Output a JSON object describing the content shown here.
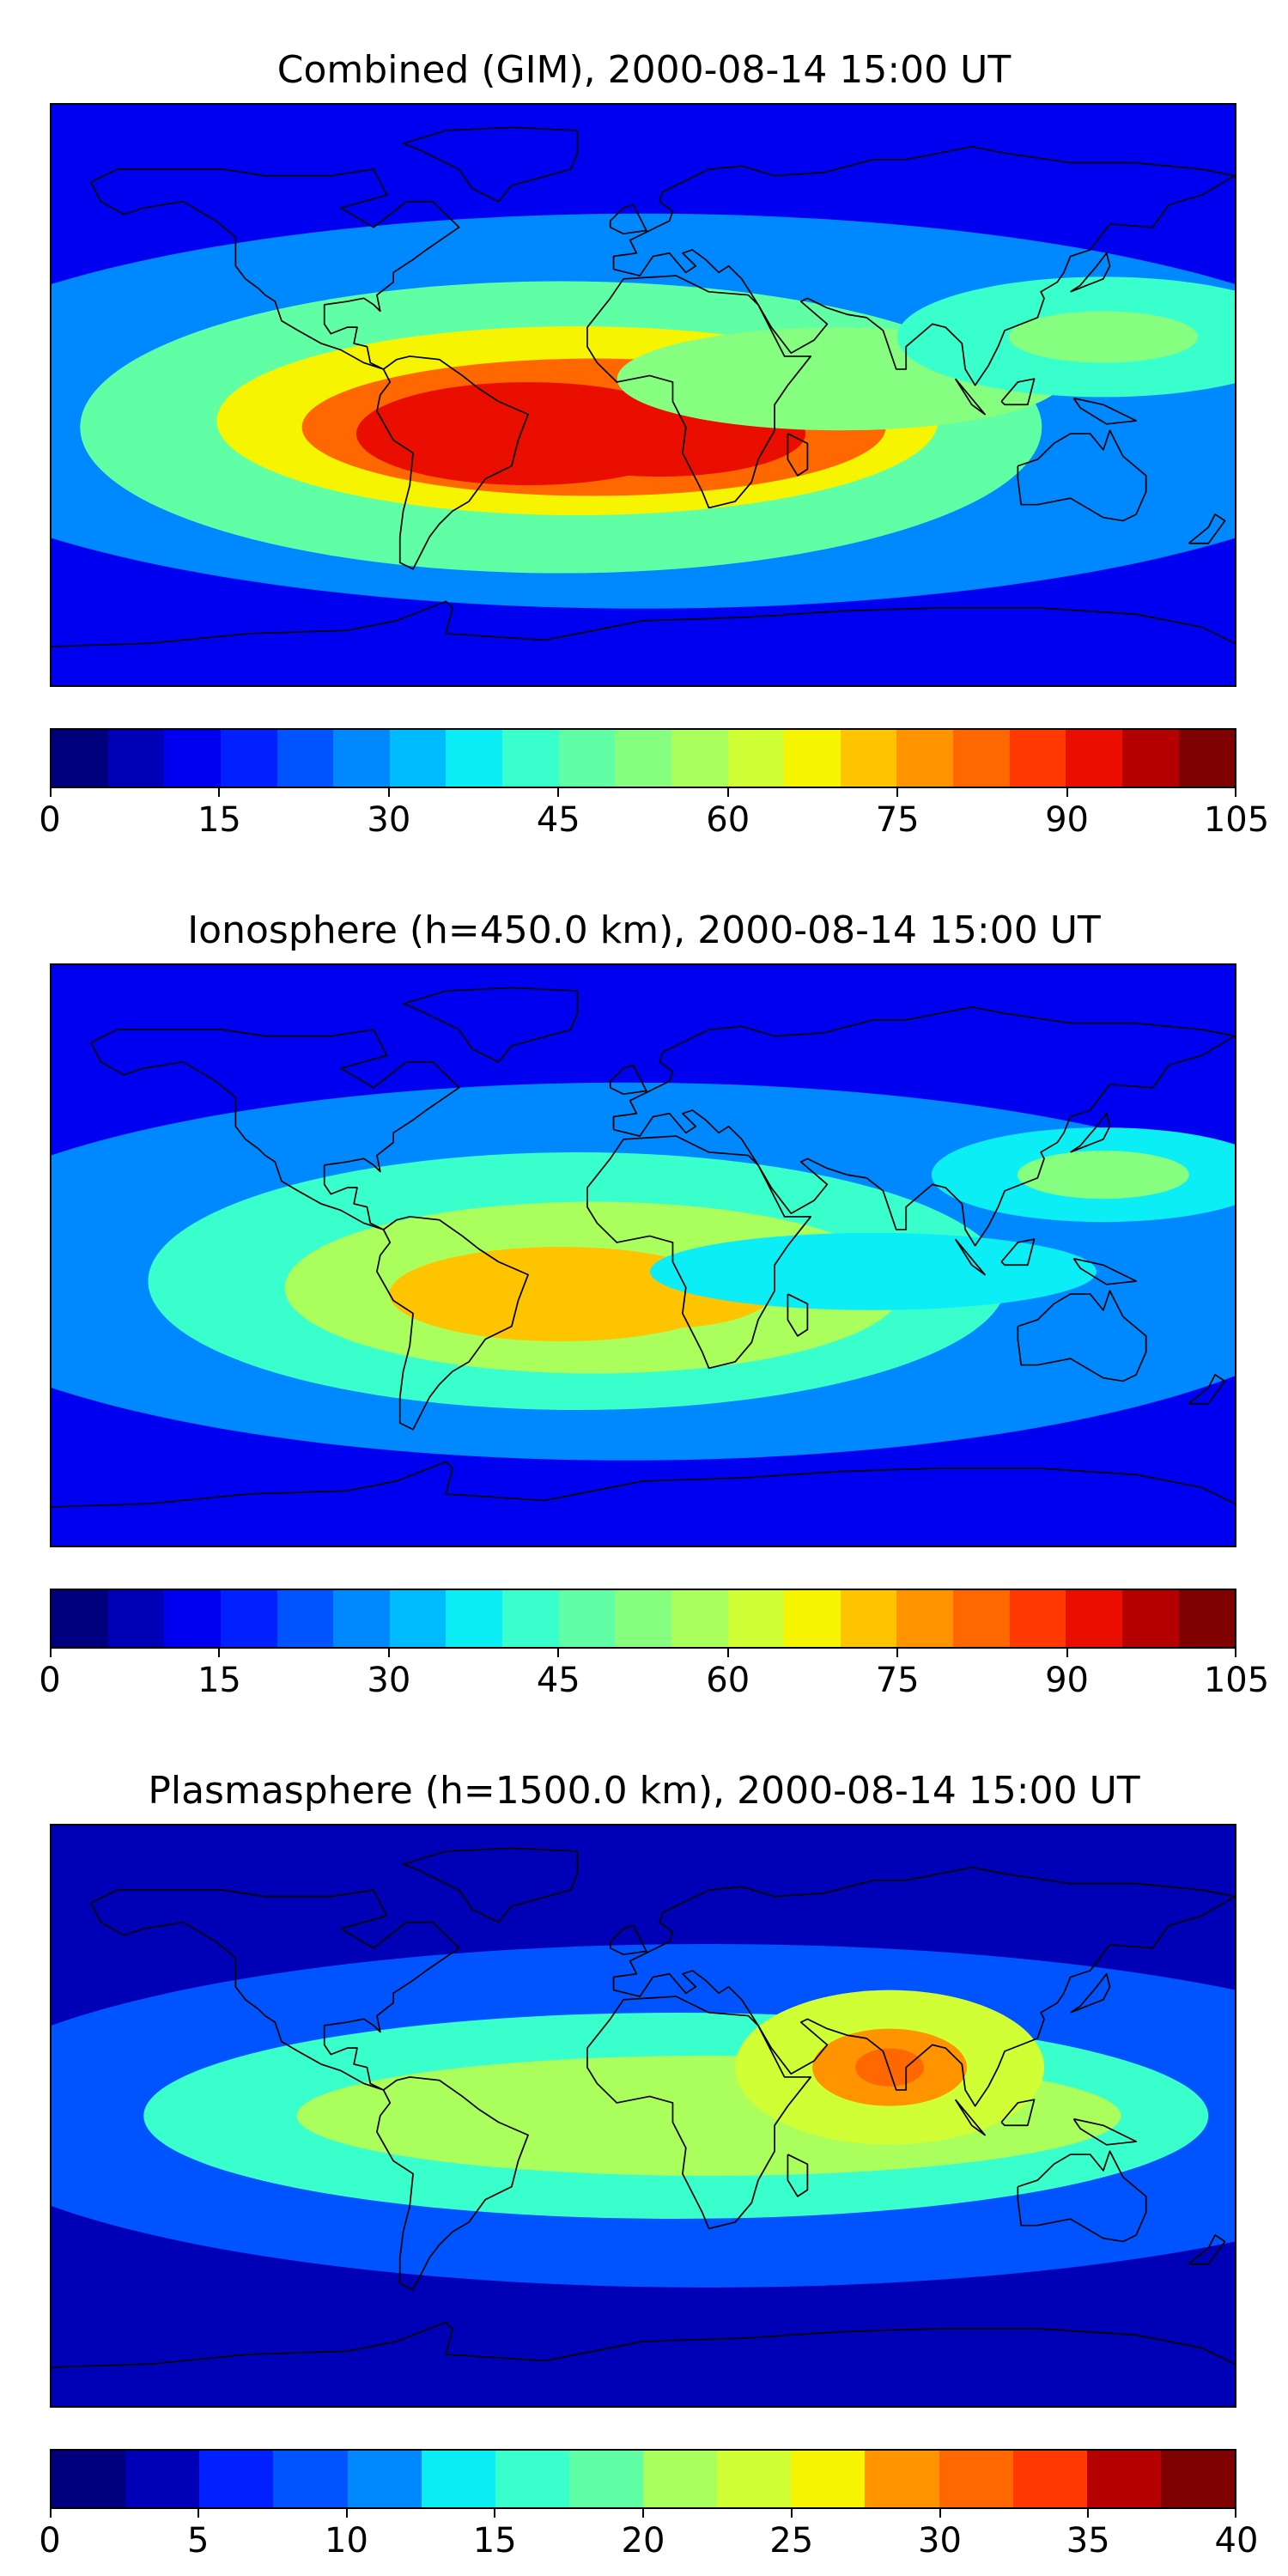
{
  "panels": [
    {
      "title": "Combined (GIM), 2000-08-14 15:00 UT",
      "colorbar": {
        "min": 0,
        "max": 105,
        "step": 5,
        "ticks": [
          0,
          15,
          30,
          45,
          60,
          75,
          90,
          105
        ]
      },
      "blobs": [
        {
          "lon": 0,
          "lat": -5,
          "rx": 900,
          "ry": 230,
          "level": 0.28
        },
        {
          "lon": -25,
          "lat": -10,
          "rx": 560,
          "ry": 170,
          "level": 0.45
        },
        {
          "lon": -20,
          "lat": -8,
          "rx": 420,
          "ry": 110,
          "level": 0.62
        },
        {
          "lon": -15,
          "lat": -10,
          "rx": 340,
          "ry": 80,
          "level": 0.78
        },
        {
          "lon": -35,
          "lat": -12,
          "rx": 200,
          "ry": 60,
          "level": 0.86
        },
        {
          "lon": 5,
          "lat": -12,
          "rx": 170,
          "ry": 50,
          "level": 0.86
        },
        {
          "lon": 60,
          "lat": 5,
          "rx": 260,
          "ry": 60,
          "level": 0.5
        },
        {
          "lon": 140,
          "lat": 18,
          "rx": 240,
          "ry": 70,
          "level": 0.42
        },
        {
          "lon": 140,
          "lat": 18,
          "rx": 110,
          "ry": 30,
          "level": 0.52
        }
      ]
    },
    {
      "title": "Ionosphere  (h=450.0 km), 2000-08-14 15:00 UT",
      "colorbar": {
        "min": 0,
        "max": 105,
        "step": 5,
        "ticks": [
          0,
          15,
          30,
          45,
          60,
          75,
          90,
          105
        ]
      },
      "blobs": [
        {
          "lon": -5,
          "lat": -5,
          "rx": 850,
          "ry": 220,
          "level": 0.25
        },
        {
          "lon": -20,
          "lat": -8,
          "rx": 500,
          "ry": 150,
          "level": 0.42
        },
        {
          "lon": -15,
          "lat": -10,
          "rx": 360,
          "ry": 100,
          "level": 0.56
        },
        {
          "lon": -25,
          "lat": -12,
          "rx": 200,
          "ry": 55,
          "level": 0.7
        },
        {
          "lon": 5,
          "lat": -12,
          "rx": 130,
          "ry": 40,
          "level": 0.7
        },
        {
          "lon": 70,
          "lat": -5,
          "rx": 260,
          "ry": 45,
          "level": 0.38
        },
        {
          "lon": 140,
          "lat": 25,
          "rx": 200,
          "ry": 55,
          "level": 0.38
        },
        {
          "lon": 140,
          "lat": 25,
          "rx": 100,
          "ry": 28,
          "level": 0.5
        }
      ]
    },
    {
      "title": "Plasmasphere (h=1500.0 km), 2000-08-14 15:00 UT",
      "colorbar": {
        "min": 0,
        "max": 40,
        "step": 2.5,
        "ticks": [
          0,
          5,
          10,
          15,
          20,
          25,
          30,
          35,
          40
        ]
      },
      "blobs": [
        {
          "lon": 20,
          "lat": 0,
          "rx": 900,
          "ry": 200,
          "level": 0.22
        },
        {
          "lon": 10,
          "lat": 0,
          "rx": 620,
          "ry": 120,
          "level": 0.38
        },
        {
          "lon": 20,
          "lat": 0,
          "rx": 480,
          "ry": 70,
          "level": 0.5
        },
        {
          "lon": 75,
          "lat": 15,
          "rx": 180,
          "ry": 90,
          "level": 0.58
        },
        {
          "lon": 75,
          "lat": 15,
          "rx": 90,
          "ry": 45,
          "level": 0.7
        },
        {
          "lon": 75,
          "lat": 15,
          "rx": 40,
          "ry": 22,
          "level": 0.78
        }
      ]
    }
  ],
  "colormap": [
    "#00007f",
    "#0000b6",
    "#0000f1",
    "#0020ff",
    "#0054ff",
    "#0088ff",
    "#00bcff",
    "#0ceef6",
    "#39ffcd",
    "#60ffa6",
    "#86ff80",
    "#aaff5c",
    "#d1ff36",
    "#f7f400",
    "#ffc400",
    "#ff9400",
    "#ff6800",
    "#ff3900",
    "#e90e00",
    "#b40000",
    "#7f0000"
  ]
}
